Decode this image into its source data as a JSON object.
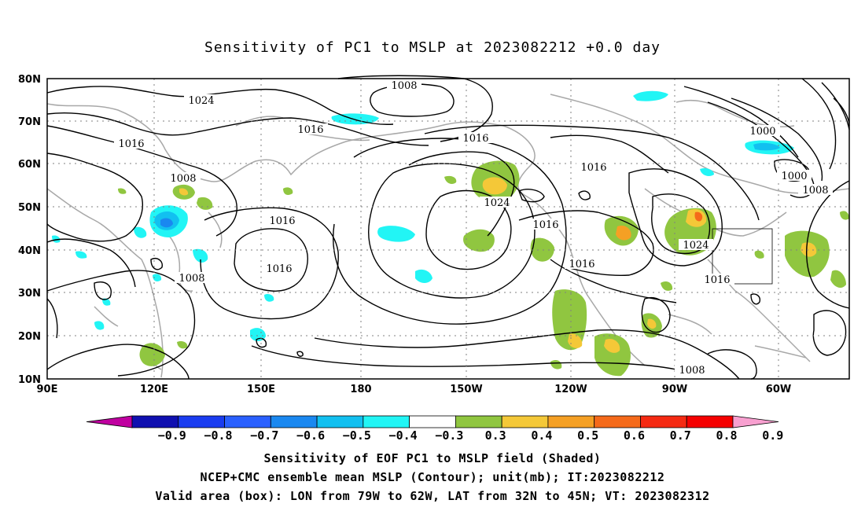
{
  "title": "Sensitivity of PC1 to MSLP at 2023082212 +0.0 day",
  "lat_labels": [
    "80N",
    "70N",
    "60N",
    "50N",
    "40N",
    "30N",
    "20N",
    "10N"
  ],
  "lon_labels": [
    "90E",
    "120E",
    "150E",
    "180",
    "150W",
    "120W",
    "90W",
    "60W"
  ],
  "contour_labels": [
    "1024",
    "1008",
    "1016",
    "1016",
    "1016",
    "1008",
    "1016",
    "1024",
    "1016",
    "1016",
    "1016",
    "1016",
    "1000",
    "1008",
    "1024",
    "1016",
    "1008",
    "1000",
    "1008",
    "1016"
  ],
  "colorbar": {
    "labels": [
      "-0.9",
      "-0.8",
      "-0.7",
      "-0.6",
      "-0.5",
      "-0.4",
      "-0.3",
      "0.3",
      "0.4",
      "0.5",
      "0.6",
      "0.7",
      "0.8",
      "0.9"
    ],
    "colors": [
      "#1010b0",
      "#1a3cf0",
      "#2a60ff",
      "#1a88f0",
      "#12c0f0",
      "#22f5f5",
      "#ffffff",
      "#90c640",
      "#f4c838",
      "#f5a024",
      "#f56a1a",
      "#f52a12",
      "#f50000"
    ],
    "low_color": "#c000a0",
    "high_color": "#f8a0d0"
  },
  "caption": {
    "line1": "Sensitivity of EOF PC1 to MSLP field (Shaded)",
    "line2": "NCEP+CMC ensemble mean MSLP (Contour); unit(mb); IT:2023082212",
    "line3": "Valid area (box): LON from 79W to 62W, LAT from 32N to 45N; VT: 2023082312"
  }
}
